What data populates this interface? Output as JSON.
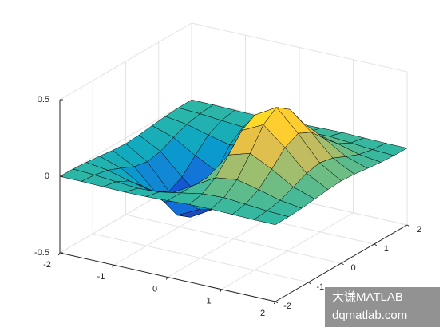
{
  "chart_data": {
    "type": "surface",
    "x": [
      -2,
      -1.6,
      -1.2,
      -0.8,
      -0.4,
      0,
      0.4,
      0.8,
      1.2,
      1.6,
      2
    ],
    "y": [
      -2,
      -1.6,
      -1.2,
      -0.8,
      -0.4,
      0,
      0.4,
      0.8,
      1.2,
      1.6,
      2
    ],
    "z": [
      [
        -0.001,
        -0.002,
        -0.005,
        -0.008,
        -0.006,
        0,
        0.006,
        0.008,
        0.005,
        0.002,
        0.001
      ],
      [
        -0.003,
        -0.01,
        -0.022,
        -0.033,
        -0.026,
        0,
        0.026,
        0.033,
        0.022,
        0.01,
        0.003
      ],
      [
        -0.009,
        -0.029,
        -0.067,
        -0.1,
        -0.081,
        0,
        0.081,
        0.1,
        0.067,
        0.029,
        0.009
      ],
      [
        -0.019,
        -0.065,
        -0.15,
        -0.222,
        -0.18,
        0,
        0.18,
        0.222,
        0.15,
        0.065,
        0.019
      ],
      [
        -0.031,
        -0.105,
        -0.242,
        -0.359,
        -0.29,
        0,
        0.29,
        0.359,
        0.242,
        0.105,
        0.031
      ],
      [
        -0.037,
        -0.124,
        -0.284,
        -0.422,
        -0.341,
        0,
        0.341,
        0.422,
        0.284,
        0.124,
        0.037
      ],
      [
        -0.031,
        -0.105,
        -0.242,
        -0.359,
        -0.29,
        0,
        0.29,
        0.359,
        0.242,
        0.105,
        0.031
      ],
      [
        -0.019,
        -0.065,
        -0.15,
        -0.222,
        -0.18,
        0,
        0.18,
        0.222,
        0.15,
        0.065,
        0.019
      ],
      [
        -0.009,
        -0.029,
        -0.067,
        -0.1,
        -0.081,
        0,
        0.081,
        0.1,
        0.067,
        0.029,
        0.009
      ],
      [
        -0.003,
        -0.01,
        -0.022,
        -0.033,
        -0.026,
        0,
        0.026,
        0.033,
        0.022,
        0.01,
        0.003
      ],
      [
        -0.001,
        -0.002,
        -0.005,
        -0.008,
        -0.006,
        0,
        0.006,
        0.008,
        0.005,
        0.002,
        0.001
      ]
    ],
    "xlim": [
      -2,
      2
    ],
    "ylim": [
      -2,
      2
    ],
    "zlim": [
      -0.5,
      0.5
    ],
    "xticks": [
      -2,
      -1,
      0,
      1,
      2
    ],
    "yticks": [
      -2,
      -1,
      0,
      1,
      2
    ],
    "zticks": [
      -0.5,
      0,
      0.5
    ],
    "grid": true,
    "colormap": "parula"
  },
  "watermark": {
    "line1": "大谦MATLAB",
    "line2": "dqmatlab.com"
  }
}
